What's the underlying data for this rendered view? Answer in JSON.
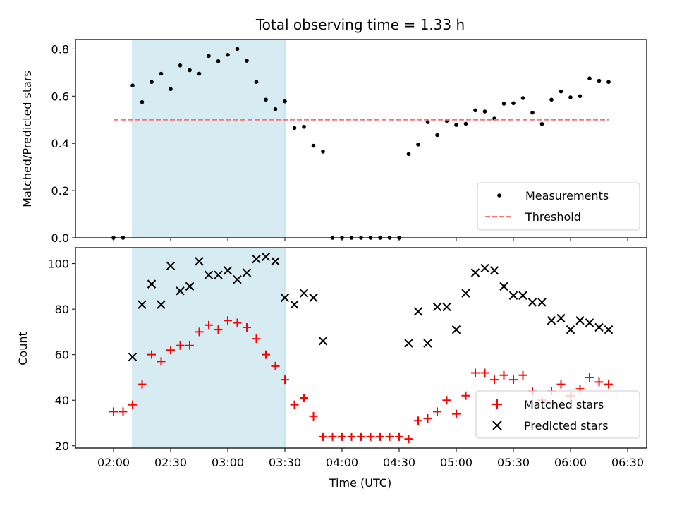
{
  "chart_data": {
    "type": "scatter",
    "title": "Total observing time = 1.33 h",
    "xlabel": "Time (UTC)",
    "x_tick_labels": [
      "02:00",
      "02:30",
      "03:00",
      "03:30",
      "04:00",
      "04:30",
      "05:00",
      "05:30",
      "06:00",
      "06:30"
    ],
    "shaded_region": {
      "start": "02:10",
      "end": "03:30",
      "color": "#add8e6"
    },
    "panels": [
      {
        "ylabel": "Matched/Predicted stars",
        "ylim": [
          0,
          0.84
        ],
        "yticks": [
          0.0,
          0.2,
          0.4,
          0.6,
          0.8
        ],
        "y_tick_labels": [
          "0.0",
          "0.2",
          "0.4",
          "0.6",
          "0.8"
        ],
        "legend_position": "lower-right",
        "series": [
          {
            "name": "Measurements",
            "marker": "dot",
            "color": "#000000",
            "points": [
              [
                "02:00",
                0.0
              ],
              [
                "02:05",
                0.0
              ],
              [
                "02:10",
                0.645
              ],
              [
                "02:15",
                0.575
              ],
              [
                "02:20",
                0.66
              ],
              [
                "02:25",
                0.695
              ],
              [
                "02:30",
                0.63
              ],
              [
                "02:35",
                0.73
              ],
              [
                "02:40",
                0.71
              ],
              [
                "02:45",
                0.695
              ],
              [
                "02:50",
                0.77
              ],
              [
                "02:55",
                0.748
              ],
              [
                "03:00",
                0.775
              ],
              [
                "03:05",
                0.8
              ],
              [
                "03:10",
                0.75
              ],
              [
                "03:15",
                0.66
              ],
              [
                "03:20",
                0.585
              ],
              [
                "03:25",
                0.545
              ],
              [
                "03:30",
                0.578
              ],
              [
                "03:35",
                0.465
              ],
              [
                "03:40",
                0.47
              ],
              [
                "03:45",
                0.39
              ],
              [
                "03:50",
                0.365
              ],
              [
                "03:55",
                0.0
              ],
              [
                "04:00",
                0.0
              ],
              [
                "04:05",
                0.0
              ],
              [
                "04:10",
                0.0
              ],
              [
                "04:15",
                0.0
              ],
              [
                "04:20",
                0.0
              ],
              [
                "04:25",
                0.0
              ],
              [
                "04:30",
                0.0
              ],
              [
                "04:35",
                0.355
              ],
              [
                "04:40",
                0.395
              ],
              [
                "04:45",
                0.49
              ],
              [
                "04:50",
                0.435
              ],
              [
                "04:55",
                0.495
              ],
              [
                "05:00",
                0.478
              ],
              [
                "05:05",
                0.483
              ],
              [
                "05:10",
                0.54
              ],
              [
                "05:15",
                0.535
              ],
              [
                "05:20",
                0.505
              ],
              [
                "05:25",
                0.568
              ],
              [
                "05:30",
                0.57
              ],
              [
                "05:35",
                0.592
              ],
              [
                "05:40",
                0.53
              ],
              [
                "05:45",
                0.482
              ],
              [
                "05:50",
                0.585
              ],
              [
                "05:55",
                0.62
              ],
              [
                "06:00",
                0.595
              ],
              [
                "06:05",
                0.6
              ],
              [
                "06:10",
                0.675
              ],
              [
                "06:15",
                0.665
              ],
              [
                "06:20",
                0.66
              ]
            ]
          },
          {
            "name": "Threshold",
            "marker": "dashed-line",
            "color": "#ff7070",
            "points": [
              [
                "02:00",
                0.5
              ],
              [
                "06:20",
                0.5
              ]
            ]
          }
        ]
      },
      {
        "ylabel": "Count",
        "ylim": [
          19,
          107
        ],
        "yticks": [
          20,
          40,
          60,
          80,
          100
        ],
        "y_tick_labels": [
          "20",
          "40",
          "60",
          "80",
          "100"
        ],
        "legend_position": "lower-right",
        "series": [
          {
            "name": "Matched stars",
            "marker": "plus",
            "color": "#ff0000",
            "points": [
              [
                "02:00",
                35
              ],
              [
                "02:05",
                35
              ],
              [
                "02:10",
                38
              ],
              [
                "02:15",
                47
              ],
              [
                "02:20",
                60
              ],
              [
                "02:25",
                57
              ],
              [
                "02:30",
                62
              ],
              [
                "02:35",
                64
              ],
              [
                "02:40",
                64
              ],
              [
                "02:45",
                70
              ],
              [
                "02:50",
                73
              ],
              [
                "02:55",
                71
              ],
              [
                "03:00",
                75
              ],
              [
                "03:05",
                74
              ],
              [
                "03:10",
                72
              ],
              [
                "03:15",
                67
              ],
              [
                "03:20",
                60
              ],
              [
                "03:25",
                55
              ],
              [
                "03:30",
                49
              ],
              [
                "03:35",
                38
              ],
              [
                "03:40",
                41
              ],
              [
                "03:45",
                33
              ],
              [
                "03:50",
                24
              ],
              [
                "03:55",
                24
              ],
              [
                "04:00",
                24
              ],
              [
                "04:05",
                24
              ],
              [
                "04:10",
                24
              ],
              [
                "04:15",
                24
              ],
              [
                "04:20",
                24
              ],
              [
                "04:25",
                24
              ],
              [
                "04:30",
                24
              ],
              [
                "04:35",
                23
              ],
              [
                "04:40",
                31
              ],
              [
                "04:45",
                32
              ],
              [
                "04:50",
                35
              ],
              [
                "04:55",
                40
              ],
              [
                "05:00",
                34
              ],
              [
                "05:05",
                42
              ],
              [
                "05:10",
                52
              ],
              [
                "05:15",
                52
              ],
              [
                "05:20",
                49
              ],
              [
                "05:25",
                51
              ],
              [
                "05:30",
                49
              ],
              [
                "05:35",
                51
              ],
              [
                "05:40",
                44
              ],
              [
                "05:45",
                40
              ],
              [
                "05:50",
                44
              ],
              [
                "05:55",
                47
              ],
              [
                "06:00",
                42
              ],
              [
                "06:05",
                45
              ],
              [
                "06:10",
                50
              ],
              [
                "06:15",
                48
              ],
              [
                "06:20",
                47
              ]
            ]
          },
          {
            "name": "Predicted stars",
            "marker": "x",
            "color": "#000000",
            "points": [
              [
                "02:10",
                59
              ],
              [
                "02:15",
                82
              ],
              [
                "02:20",
                91
              ],
              [
                "02:25",
                82
              ],
              [
                "02:30",
                99
              ],
              [
                "02:35",
                88
              ],
              [
                "02:40",
                90
              ],
              [
                "02:45",
                101
              ],
              [
                "02:50",
                95
              ],
              [
                "02:55",
                95
              ],
              [
                "03:00",
                97
              ],
              [
                "03:05",
                93
              ],
              [
                "03:10",
                96
              ],
              [
                "03:15",
                102
              ],
              [
                "03:20",
                103
              ],
              [
                "03:25",
                101
              ],
              [
                "03:30",
                85
              ],
              [
                "03:35",
                82
              ],
              [
                "03:40",
                87
              ],
              [
                "03:45",
                85
              ],
              [
                "03:50",
                66
              ],
              [
                "04:35",
                65
              ],
              [
                "04:40",
                79
              ],
              [
                "04:45",
                65
              ],
              [
                "04:50",
                81
              ],
              [
                "04:55",
                81
              ],
              [
                "05:00",
                71
              ],
              [
                "05:05",
                87
              ],
              [
                "05:10",
                96
              ],
              [
                "05:15",
                98
              ],
              [
                "05:20",
                97
              ],
              [
                "05:25",
                90
              ],
              [
                "05:30",
                86
              ],
              [
                "05:35",
                86
              ],
              [
                "05:40",
                83
              ],
              [
                "05:45",
                83
              ],
              [
                "05:50",
                75
              ],
              [
                "05:55",
                76
              ],
              [
                "06:00",
                71
              ],
              [
                "06:05",
                75
              ],
              [
                "06:10",
                74
              ],
              [
                "06:15",
                72
              ],
              [
                "06:20",
                71
              ]
            ]
          }
        ]
      }
    ]
  }
}
